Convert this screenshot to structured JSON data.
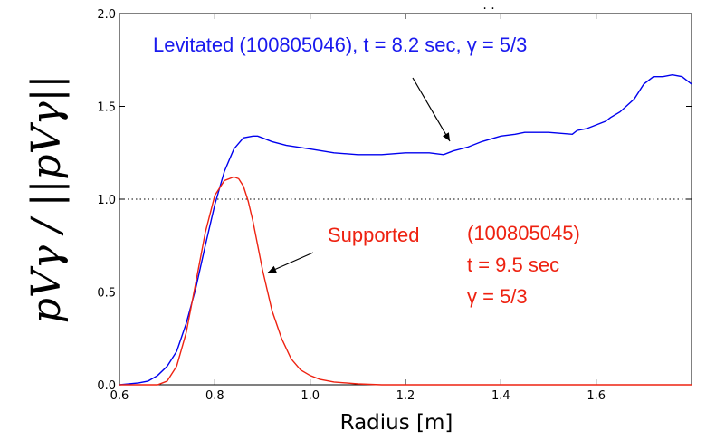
{
  "chart_data": {
    "type": "line",
    "xlabel": "Radius [m]",
    "ylabel": "pVγ / ||pVγ||",
    "xlim": [
      0.6,
      1.8
    ],
    "ylim": [
      0.0,
      2.0
    ],
    "xticks": [
      "0.6",
      "0.8",
      "1.0",
      "1.2",
      "1.4",
      "1.6"
    ],
    "yticks": [
      "0.0",
      "0.5",
      "1.0",
      "1.5",
      "2.0"
    ],
    "reference_line": {
      "y": 1.0,
      "style": "dotted"
    },
    "series": [
      {
        "color": "#0000ee",
        "x": [
          0.6,
          0.64,
          0.66,
          0.68,
          0.7,
          0.72,
          0.74,
          0.76,
          0.78,
          0.8,
          0.82,
          0.84,
          0.86,
          0.88,
          0.89,
          0.9,
          0.92,
          0.95,
          1.0,
          1.05,
          1.1,
          1.15,
          1.2,
          1.25,
          1.28,
          1.3,
          1.33,
          1.36,
          1.4,
          1.43,
          1.45,
          1.5,
          1.55,
          1.56,
          1.58,
          1.6,
          1.62,
          1.63,
          1.65,
          1.68,
          1.7,
          1.72,
          1.74,
          1.76,
          1.78,
          1.8
        ],
        "y": [
          0.0,
          0.01,
          0.02,
          0.05,
          0.1,
          0.18,
          0.33,
          0.52,
          0.75,
          0.97,
          1.15,
          1.27,
          1.33,
          1.34,
          1.34,
          1.33,
          1.31,
          1.29,
          1.27,
          1.25,
          1.24,
          1.24,
          1.25,
          1.25,
          1.24,
          1.26,
          1.28,
          1.31,
          1.34,
          1.35,
          1.36,
          1.36,
          1.35,
          1.37,
          1.38,
          1.4,
          1.42,
          1.44,
          1.47,
          1.54,
          1.62,
          1.66,
          1.66,
          1.67,
          1.66,
          1.62
        ]
      },
      {
        "color": "#ee2211",
        "x": [
          0.6,
          0.66,
          0.68,
          0.7,
          0.72,
          0.74,
          0.76,
          0.78,
          0.8,
          0.82,
          0.84,
          0.85,
          0.86,
          0.87,
          0.88,
          0.9,
          0.92,
          0.94,
          0.96,
          0.98,
          1.0,
          1.02,
          1.05,
          1.1,
          1.15,
          1.2,
          1.3,
          1.4,
          1.5,
          1.6,
          1.7,
          1.8
        ],
        "y": [
          0.0,
          0.0,
          0.0,
          0.02,
          0.1,
          0.28,
          0.55,
          0.82,
          1.02,
          1.1,
          1.12,
          1.11,
          1.07,
          0.99,
          0.88,
          0.62,
          0.4,
          0.25,
          0.14,
          0.08,
          0.05,
          0.03,
          0.015,
          0.005,
          0.0,
          0.0,
          0.0,
          0.0,
          0.0,
          0.0,
          0.0,
          0.0
        ]
      }
    ],
    "annotations": {
      "blue": "Levitated (100805046), t = 8.2 sec, γ = 5/3",
      "red_line1a": "Supported",
      "red_line1b": "(100805045)",
      "red_line2": "t = 9.5 sec",
      "red_line3": "γ = 5/3"
    },
    "arrows": [
      {
        "color": "#000000",
        "from": [
          1.34,
          1.3
        ],
        "to": [
          1.28,
          1.25
        ]
      },
      {
        "color": "#000000",
        "from": [
          0.68,
          0.05
        ],
        "to": [
          0.64,
          0.0
        ]
      }
    ],
    "top_marker": ". ."
  }
}
